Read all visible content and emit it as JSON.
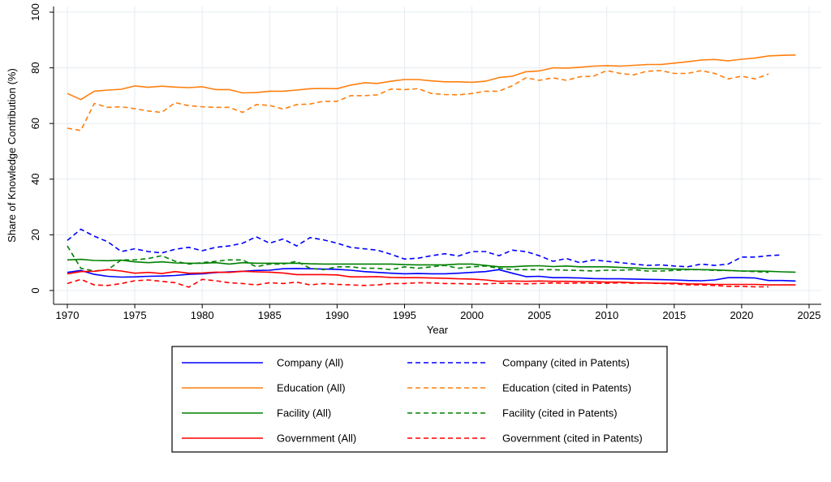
{
  "chart_data": {
    "type": "line",
    "title": "",
    "xlabel": "Year",
    "ylabel": "Share of Knowledge Contribution (%)",
    "xlim": [
      1968,
      2025
    ],
    "ylim": [
      0,
      100
    ],
    "x_ticks": [
      1970,
      1975,
      1980,
      1985,
      1990,
      1995,
      2000,
      2005,
      2010,
      2015,
      2020,
      2025
    ],
    "y_ticks": [
      0,
      20,
      40,
      60,
      80,
      100
    ],
    "grid": true,
    "legend_position": "bottom",
    "series": [
      {
        "name": "Company (All)",
        "color": "#0000ff",
        "dash": false,
        "x_start": 1970,
        "values": [
          6.5,
          7.2,
          5.8,
          5.1,
          4.8,
          4.9,
          5.1,
          5.2,
          5.4,
          5.8,
          6.0,
          6.4,
          6.7,
          6.9,
          7.2,
          7.3,
          7.8,
          7.9,
          7.8,
          7.7,
          7.6,
          7.3,
          6.8,
          6.5,
          6.2,
          6.0,
          6.1,
          6.0,
          6.0,
          6.2,
          6.5,
          6.8,
          7.5,
          6.2,
          5.0,
          5.1,
          4.6,
          4.6,
          4.5,
          4.3,
          4.2,
          4.2,
          4.1,
          4.0,
          3.9,
          3.8,
          3.6,
          3.5,
          3.8,
          4.6,
          4.6,
          4.5,
          3.6,
          3.6,
          3.4
        ]
      },
      {
        "name": "Company (cited in Patents)",
        "color": "#0000ff",
        "dash": true,
        "x_start": 1970,
        "values": [
          18.0,
          22.0,
          19.5,
          17.5,
          14.0,
          15.0,
          14.0,
          13.5,
          14.8,
          15.5,
          14.3,
          15.5,
          16.0,
          17.0,
          19.3,
          17.0,
          18.5,
          16.0,
          19.0,
          18.2,
          17.0,
          15.5,
          15.0,
          14.5,
          13.0,
          11.3,
          11.6,
          12.5,
          13.2,
          12.4,
          14.0,
          14.0,
          12.5,
          14.5,
          14.0,
          12.5,
          10.5,
          11.5,
          10.0,
          11.0,
          10.5,
          10.0,
          9.5,
          9.0,
          9.2,
          8.8,
          8.5,
          9.5,
          9.0,
          9.5,
          12.0,
          12.0,
          12.5,
          12.8
        ]
      },
      {
        "name": "Education (All)",
        "color": "#ff7f0e",
        "dash": false,
        "x_start": 1970,
        "values": [
          70.8,
          68.6,
          71.6,
          72.0,
          72.3,
          73.5,
          73.0,
          73.4,
          73.1,
          72.9,
          73.2,
          72.2,
          72.2,
          71.0,
          71.1,
          71.6,
          71.6,
          72.0,
          72.5,
          72.6,
          72.5,
          73.8,
          74.6,
          74.4,
          75.2,
          75.8,
          75.8,
          75.3,
          75.0,
          75.0,
          74.8,
          75.2,
          76.5,
          77.0,
          78.6,
          78.9,
          80.0,
          79.9,
          80.2,
          80.6,
          80.8,
          80.6,
          80.9,
          81.2,
          81.2,
          81.7,
          82.2,
          82.8,
          83.0,
          82.5,
          83.1,
          83.5,
          84.3,
          84.5,
          84.6
        ]
      },
      {
        "name": "Education (cited in Patents)",
        "color": "#ff7f0e",
        "dash": true,
        "x_start": 1970,
        "values": [
          58.3,
          57.5,
          67.2,
          65.8,
          66.0,
          65.3,
          64.5,
          64.0,
          67.5,
          66.4,
          66.0,
          65.8,
          65.8,
          64.0,
          66.8,
          66.5,
          65.2,
          66.8,
          67.0,
          68.0,
          68.0,
          70.0,
          70.0,
          70.3,
          72.4,
          72.2,
          72.5,
          70.8,
          70.4,
          70.3,
          70.8,
          71.6,
          71.6,
          73.6,
          76.4,
          75.5,
          76.4,
          75.5,
          76.8,
          77.0,
          79.0,
          78.0,
          77.5,
          78.8,
          79.0,
          78.0,
          78.0,
          79.0,
          78.0,
          76.0,
          77.0,
          76.0,
          77.8
        ]
      },
      {
        "name": "Facility (All)",
        "color": "#008000",
        "dash": false,
        "x_start": 1970,
        "values": [
          11.0,
          11.2,
          10.8,
          10.7,
          10.9,
          10.3,
          10.0,
          10.3,
          9.9,
          9.8,
          9.8,
          10.0,
          9.5,
          10.0,
          9.8,
          9.8,
          9.8,
          9.8,
          9.6,
          9.5,
          9.5,
          9.5,
          9.5,
          9.5,
          9.5,
          9.3,
          9.2,
          9.2,
          9.2,
          9.5,
          9.5,
          9.0,
          8.5,
          8.5,
          8.8,
          8.9,
          8.6,
          8.8,
          8.5,
          8.5,
          8.5,
          8.3,
          8.1,
          7.9,
          7.8,
          7.7,
          7.6,
          7.5,
          7.4,
          7.2,
          7.0,
          7.0,
          6.9,
          6.7,
          6.6
        ]
      },
      {
        "name": "Facility (cited in Patents)",
        "color": "#008000",
        "dash": true,
        "x_start": 1970,
        "values": [
          16.0,
          8.0,
          7.0,
          7.5,
          11.0,
          11.0,
          11.5,
          12.5,
          10.5,
          9.5,
          10.0,
          10.5,
          11.0,
          11.0,
          8.5,
          9.5,
          9.5,
          10.5,
          8.0,
          7.5,
          8.5,
          8.5,
          8.0,
          8.0,
          7.5,
          8.5,
          8.0,
          8.5,
          9.0,
          8.0,
          8.5,
          8.8,
          8.0,
          7.5,
          7.5,
          7.5,
          7.5,
          7.3,
          7.2,
          7.0,
          7.3,
          7.3,
          7.5,
          7.0,
          7.0,
          7.2,
          7.5,
          7.5,
          7.2,
          7.2,
          7.0,
          6.8,
          6.5
        ]
      },
      {
        "name": "Government (All)",
        "color": "#ff0000",
        "dash": false,
        "x_start": 1970,
        "values": [
          6.0,
          6.8,
          6.9,
          7.5,
          7.0,
          6.2,
          6.5,
          6.1,
          6.8,
          6.2,
          6.3,
          6.6,
          6.5,
          6.9,
          6.7,
          6.6,
          6.3,
          5.7,
          5.7,
          5.7,
          5.6,
          4.9,
          4.9,
          5.0,
          4.7,
          4.6,
          4.6,
          4.5,
          4.4,
          4.2,
          4.1,
          3.8,
          3.3,
          3.4,
          3.3,
          3.4,
          3.3,
          3.3,
          3.2,
          3.2,
          3.0,
          3.0,
          2.8,
          2.7,
          2.6,
          2.6,
          2.4,
          2.3,
          2.2,
          2.2,
          2.2,
          2.2,
          2.0,
          2.0,
          2.0
        ]
      },
      {
        "name": "Government (cited in Patents)",
        "color": "#ff0000",
        "dash": true,
        "x_start": 1970,
        "values": [
          2.5,
          4.0,
          2.0,
          1.8,
          2.5,
          3.5,
          3.8,
          3.3,
          2.8,
          1.2,
          4.0,
          3.5,
          2.8,
          2.5,
          2.0,
          2.8,
          2.5,
          3.0,
          2.0,
          2.5,
          2.2,
          2.0,
          1.8,
          2.0,
          2.5,
          2.5,
          2.8,
          2.7,
          2.5,
          2.5,
          2.3,
          2.4,
          2.6,
          2.5,
          2.4,
          2.5,
          2.7,
          2.6,
          2.7,
          2.6,
          2.6,
          2.8,
          2.6,
          2.7,
          2.5,
          2.4,
          2.0,
          2.0,
          1.8,
          1.5,
          1.5,
          1.3,
          1.3
        ]
      }
    ]
  }
}
